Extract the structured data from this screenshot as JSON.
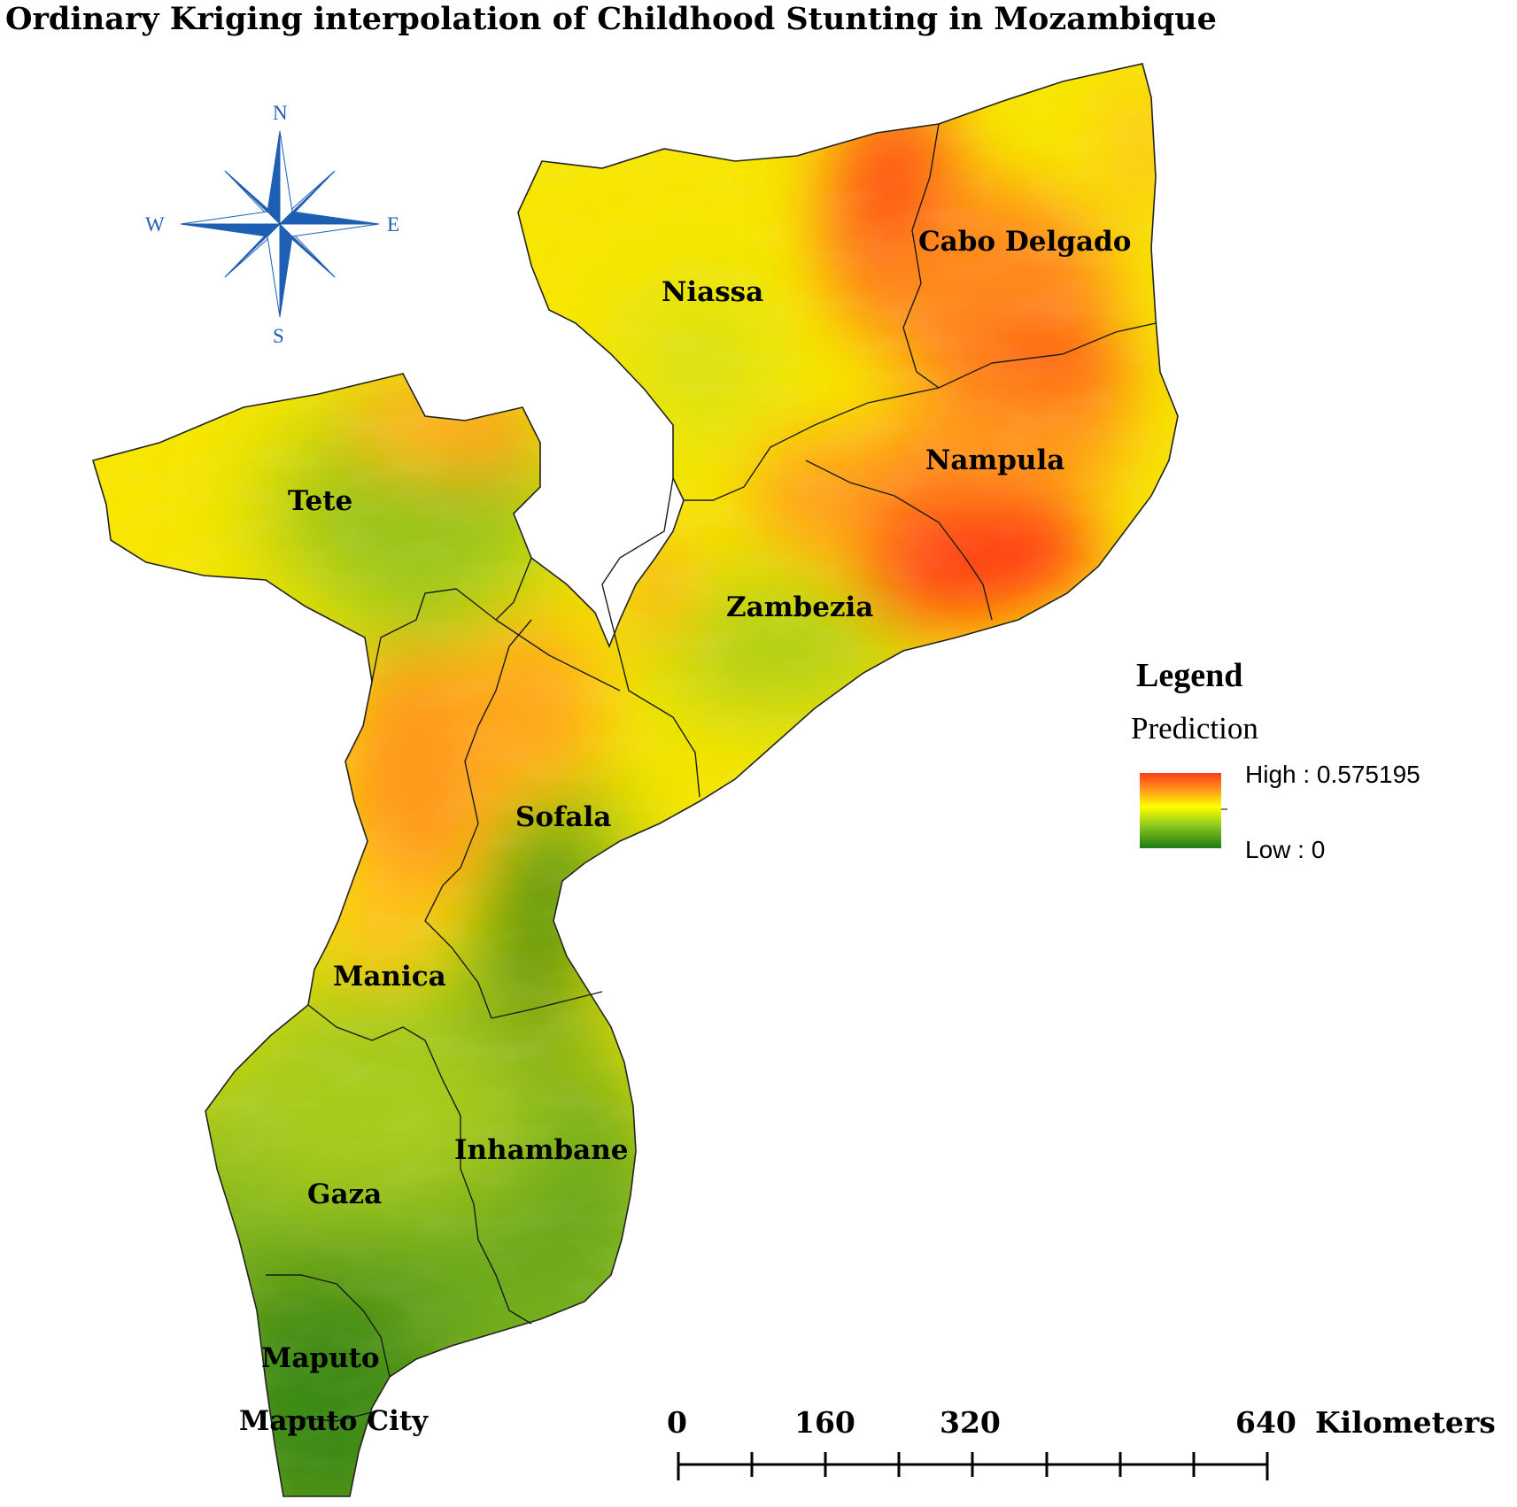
{
  "title": "Ordinary Kriging interpolation of Childhood Stunting in Mozambique",
  "compass": {
    "north": "N",
    "south": "S",
    "east": "E",
    "west": "W"
  },
  "provinces": {
    "niassa": "Niassa",
    "cabo_delgado": "Cabo Delgado",
    "nampula": "Nampula",
    "tete": "Tete",
    "zambezia": "Zambezia",
    "manica": "Manica",
    "sofala": "Sofala",
    "inhambane": "Inhambane",
    "gaza": "Gaza",
    "maputo": "Maputo",
    "maputo_city": "Maputo City"
  },
  "legend": {
    "title": "Legend",
    "field": "Prediction",
    "high": "High : 0.575195",
    "low": "Low : 0",
    "high_value": 0.575195,
    "low_value": 0,
    "colors": {
      "high": "#ff3b1a",
      "mid_high": "#ffa31a",
      "mid": "#ffff00",
      "mid_low": "#8cc81e",
      "low": "#1e7a14"
    }
  },
  "scale_bar": {
    "ticks": [
      "0",
      "160",
      "320",
      "640"
    ],
    "unit": "Kilometers"
  }
}
